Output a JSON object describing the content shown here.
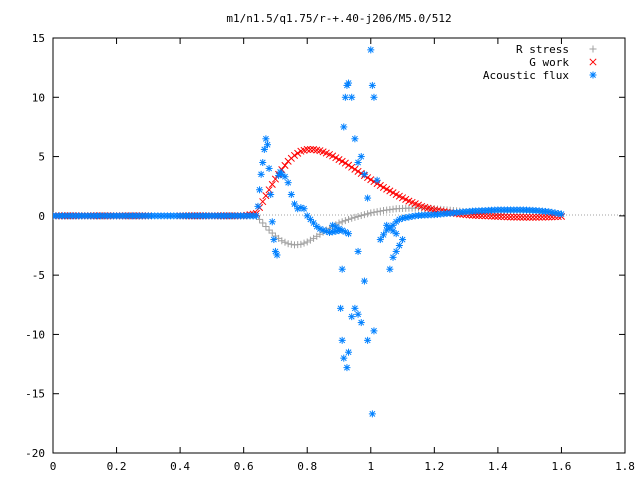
{
  "chart_data": {
    "type": "scatter",
    "title": "m1/n1.5/q1.75/r-+.40-j206/M5.0/512",
    "xlabel": "",
    "ylabel": "",
    "xlim": [
      0,
      1.8
    ],
    "ylim": [
      -20,
      15
    ],
    "x_ticks": [
      0,
      0.2,
      0.4,
      0.6,
      0.8,
      1,
      1.2,
      1.4,
      1.6,
      1.8
    ],
    "x_tick_labels": [
      "0",
      "0.2",
      "0.4",
      "0.6",
      "0.8",
      "1",
      "1.2",
      "1.4",
      "1.6",
      "1.8"
    ],
    "y_ticks": [
      -20,
      -15,
      -10,
      -5,
      0,
      5,
      10,
      15
    ],
    "y_tick_labels": [
      "-20",
      "-15",
      "-10",
      "-5",
      "0",
      "5",
      "10",
      "15"
    ],
    "grid": false,
    "legend_position": "top-right",
    "series": [
      {
        "name": "R stress",
        "marker": "plus",
        "color": "#a0a0a0",
        "points": [
          [
            0,
            0
          ],
          [
            0.1,
            0
          ],
          [
            0.2,
            0
          ],
          [
            0.3,
            0
          ],
          [
            0.4,
            0
          ],
          [
            0.5,
            0
          ],
          [
            0.6,
            0
          ],
          [
            0.64,
            0
          ],
          [
            0.66,
            -0.6
          ],
          [
            0.68,
            -1.2
          ],
          [
            0.7,
            -1.7
          ],
          [
            0.72,
            -2.1
          ],
          [
            0.74,
            -2.35
          ],
          [
            0.76,
            -2.45
          ],
          [
            0.78,
            -2.4
          ],
          [
            0.8,
            -2.2
          ],
          [
            0.82,
            -1.9
          ],
          [
            0.84,
            -1.55
          ],
          [
            0.86,
            -1.2
          ],
          [
            0.88,
            -0.9
          ],
          [
            0.9,
            -0.6
          ],
          [
            0.92,
            -0.4
          ],
          [
            0.94,
            -0.2
          ],
          [
            0.96,
            -0.05
          ],
          [
            0.98,
            0.1
          ],
          [
            1.0,
            0.25
          ],
          [
            1.04,
            0.45
          ],
          [
            1.08,
            0.6
          ],
          [
            1.12,
            0.65
          ],
          [
            1.16,
            0.65
          ],
          [
            1.2,
            0.6
          ],
          [
            1.24,
            0.5
          ],
          [
            1.28,
            0.4
          ],
          [
            1.32,
            0.3
          ],
          [
            1.36,
            0.3
          ],
          [
            1.4,
            0.35
          ],
          [
            1.44,
            0.4
          ],
          [
            1.48,
            0.4
          ],
          [
            1.52,
            0.35
          ],
          [
            1.56,
            0.3
          ],
          [
            1.6,
            0.15
          ]
        ]
      },
      {
        "name": "G work",
        "marker": "cross",
        "color": "#ff0000",
        "points": [
          [
            0,
            0
          ],
          [
            0.1,
            0
          ],
          [
            0.2,
            0
          ],
          [
            0.3,
            0
          ],
          [
            0.4,
            0
          ],
          [
            0.5,
            0
          ],
          [
            0.6,
            0
          ],
          [
            0.64,
            0.2
          ],
          [
            0.66,
            1.2
          ],
          [
            0.68,
            2.2
          ],
          [
            0.7,
            3.1
          ],
          [
            0.72,
            3.9
          ],
          [
            0.74,
            4.6
          ],
          [
            0.76,
            5.1
          ],
          [
            0.78,
            5.45
          ],
          [
            0.8,
            5.6
          ],
          [
            0.82,
            5.6
          ],
          [
            0.84,
            5.5
          ],
          [
            0.86,
            5.3
          ],
          [
            0.88,
            5.05
          ],
          [
            0.9,
            4.75
          ],
          [
            0.92,
            4.45
          ],
          [
            0.94,
            4.1
          ],
          [
            0.96,
            3.75
          ],
          [
            0.98,
            3.4
          ],
          [
            1.0,
            3.05
          ],
          [
            1.04,
            2.4
          ],
          [
            1.08,
            1.8
          ],
          [
            1.12,
            1.25
          ],
          [
            1.16,
            0.8
          ],
          [
            1.2,
            0.5
          ],
          [
            1.24,
            0.3
          ],
          [
            1.28,
            0.15
          ],
          [
            1.32,
            0.05
          ],
          [
            1.36,
            0.0
          ],
          [
            1.4,
            -0.05
          ],
          [
            1.44,
            -0.1
          ],
          [
            1.48,
            -0.12
          ],
          [
            1.52,
            -0.12
          ],
          [
            1.56,
            -0.1
          ],
          [
            1.6,
            -0.05
          ]
        ]
      },
      {
        "name": "Acoustic flux",
        "marker": "star",
        "color": "#0080ff",
        "points": [
          [
            0,
            0
          ],
          [
            0.05,
            0
          ],
          [
            0.1,
            0
          ],
          [
            0.15,
            0
          ],
          [
            0.2,
            0
          ],
          [
            0.25,
            0
          ],
          [
            0.3,
            0
          ],
          [
            0.35,
            0
          ],
          [
            0.4,
            0
          ],
          [
            0.45,
            0
          ],
          [
            0.5,
            0
          ],
          [
            0.55,
            0
          ],
          [
            0.6,
            0
          ],
          [
            0.64,
            0
          ],
          [
            0.645,
            0.8
          ],
          [
            0.65,
            2.2
          ],
          [
            0.655,
            3.5
          ],
          [
            0.66,
            4.5
          ],
          [
            0.665,
            5.6
          ],
          [
            0.67,
            6.5
          ],
          [
            0.675,
            6.0
          ],
          [
            0.68,
            4.0
          ],
          [
            0.685,
            1.8
          ],
          [
            0.69,
            -0.5
          ],
          [
            0.695,
            -2.0
          ],
          [
            0.7,
            -3.0
          ],
          [
            0.705,
            -3.3
          ],
          [
            0.71,
            3.4
          ],
          [
            0.715,
            3.7
          ],
          [
            0.72,
            3.5
          ],
          [
            0.73,
            3.3
          ],
          [
            0.74,
            2.8
          ],
          [
            0.75,
            1.8
          ],
          [
            0.76,
            1.0
          ],
          [
            0.77,
            0.6
          ],
          [
            0.78,
            0.7
          ],
          [
            0.79,
            0.6
          ],
          [
            0.8,
            0.0
          ],
          [
            0.81,
            -0.3
          ],
          [
            0.82,
            -0.6
          ],
          [
            0.83,
            -0.9
          ],
          [
            0.84,
            -1.1
          ],
          [
            0.85,
            -1.2
          ],
          [
            0.86,
            -1.3
          ],
          [
            0.87,
            -1.4
          ],
          [
            0.88,
            -1.35
          ],
          [
            0.89,
            -1.3
          ],
          [
            0.9,
            -1.25
          ],
          [
            0.91,
            -4.5
          ],
          [
            0.915,
            7.5
          ],
          [
            0.92,
            10.0
          ],
          [
            0.925,
            11.0
          ],
          [
            0.93,
            11.2
          ],
          [
            0.94,
            10.0
          ],
          [
            0.95,
            6.5
          ],
          [
            0.96,
            4.5
          ],
          [
            0.97,
            5.0
          ],
          [
            0.98,
            3.5
          ],
          [
            0.99,
            1.5
          ],
          [
            1.0,
            14.0
          ],
          [
            1.005,
            11.0
          ],
          [
            1.01,
            10.0
          ],
          [
            1.02,
            3.0
          ],
          [
            0.905,
            -7.8
          ],
          [
            0.91,
            -10.5
          ],
          [
            0.915,
            -12.0
          ],
          [
            0.925,
            -12.8
          ],
          [
            0.93,
            -11.5
          ],
          [
            0.94,
            -8.5
          ],
          [
            0.95,
            -7.8
          ],
          [
            0.96,
            -8.3
          ],
          [
            0.97,
            -9.0
          ],
          [
            0.98,
            -5.5
          ],
          [
            0.99,
            -10.5
          ],
          [
            1.005,
            -16.7
          ],
          [
            1.01,
            -9.7
          ],
          [
            1.03,
            -2.0
          ],
          [
            1.04,
            -1.6
          ],
          [
            1.05,
            -1.2
          ],
          [
            1.06,
            -1.0
          ],
          [
            1.07,
            -0.8
          ],
          [
            1.08,
            -0.5
          ],
          [
            1.09,
            -0.3
          ],
          [
            1.1,
            -0.2
          ],
          [
            1.12,
            -0.1
          ],
          [
            1.14,
            0.0
          ],
          [
            1.16,
            0.05
          ],
          [
            1.2,
            0.1
          ],
          [
            1.24,
            0.2
          ],
          [
            1.28,
            0.3
          ],
          [
            1.32,
            0.4
          ],
          [
            1.36,
            0.45
          ],
          [
            1.4,
            0.5
          ],
          [
            1.44,
            0.5
          ],
          [
            1.48,
            0.5
          ],
          [
            1.52,
            0.45
          ],
          [
            1.56,
            0.35
          ],
          [
            1.6,
            0.15
          ],
          [
            0.88,
            -0.8
          ],
          [
            0.93,
            -1.5
          ],
          [
            0.96,
            -3.0
          ],
          [
            1.06,
            -4.5
          ],
          [
            1.07,
            -3.5
          ],
          [
            1.09,
            -2.5
          ],
          [
            1.1,
            -2.0
          ],
          [
            1.05,
            -0.8
          ],
          [
            1.08,
            -1.5
          ]
        ]
      }
    ]
  }
}
